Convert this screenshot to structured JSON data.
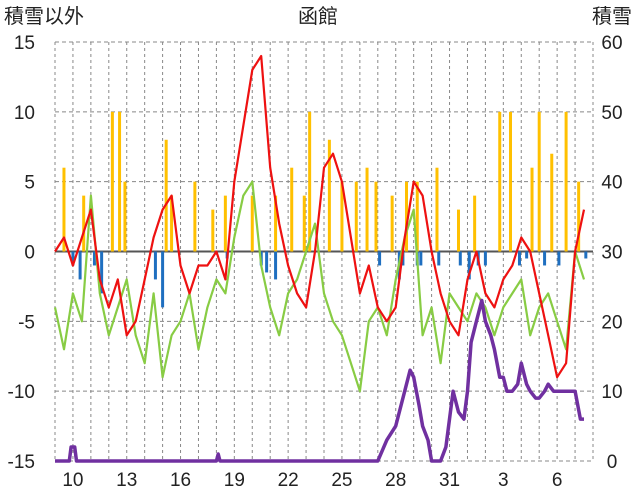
{
  "chart_data": {
    "type": "line",
    "title": "函館",
    "ylabel_left": "積雪以外",
    "ylabel_right": "積雪",
    "ylim_left": [
      -15,
      15
    ],
    "ylim_right": [
      0,
      60
    ],
    "y_left_ticks": [
      "15",
      "10",
      "5",
      "0",
      "-5",
      "-10",
      "-15"
    ],
    "y_right_ticks": [
      "60",
      "50",
      "40",
      "30",
      "20",
      "10",
      "0"
    ],
    "x_tick_labels": [
      "10",
      "13",
      "16",
      "19",
      "22",
      "25",
      "28",
      "31",
      "3",
      "6"
    ],
    "n_days": 30,
    "grid": true,
    "colors": {
      "max_temp": "#ee1111",
      "min_temp": "#88cc44",
      "precip_pos": "#ffc000",
      "precip_neg": "#1f6fc0",
      "snow_depth": "#7030a0",
      "grid": "#888888",
      "zero_line": "#555555"
    },
    "series": [
      {
        "key": "max_temp",
        "x": [
          0,
          0.5,
          1,
          1.5,
          2,
          2.5,
          3,
          3.5,
          4,
          4.5,
          5,
          5.5,
          6,
          6.5,
          7,
          7.5,
          8,
          8.5,
          9,
          9.5,
          10,
          10.5,
          11,
          11.5,
          12,
          12.5,
          13,
          13.5,
          14,
          14.5,
          15,
          15.5,
          16,
          16.5,
          17,
          17.5,
          18,
          18.5,
          19,
          19.5,
          20,
          20.5,
          21,
          21.5,
          22,
          22.5,
          23,
          23.5,
          24,
          24.5,
          25,
          25.5,
          26,
          26.5,
          27,
          27.5,
          28,
          28.5,
          29,
          29.5
        ],
        "values": [
          0,
          1,
          -1,
          1,
          3,
          -2,
          -4,
          -2,
          -6,
          -5,
          -2,
          1,
          3,
          4,
          -1,
          -3,
          -1,
          -1,
          0,
          -2,
          5,
          9,
          13,
          14,
          6,
          2,
          -1,
          -3,
          -4,
          0,
          6,
          7,
          5,
          1,
          -3,
          -1,
          -4,
          -5,
          -4,
          1,
          5,
          4,
          0,
          -3,
          -5,
          -6,
          -2,
          0,
          -3,
          -4,
          -2,
          -1,
          1,
          0,
          -3,
          -6,
          -9,
          -8,
          0,
          3
        ]
      },
      {
        "key": "min_temp",
        "x": [
          0,
          0.5,
          1,
          1.5,
          2,
          2.5,
          3,
          3.5,
          4,
          4.5,
          5,
          5.5,
          6,
          6.5,
          7,
          7.5,
          8,
          8.5,
          9,
          9.5,
          10,
          10.5,
          11,
          11.5,
          12,
          12.5,
          13,
          13.5,
          14,
          14.5,
          15,
          15.5,
          16,
          16.5,
          17,
          17.5,
          18,
          18.5,
          19,
          19.5,
          20,
          20.5,
          21,
          21.5,
          22,
          22.5,
          23,
          23.5,
          24,
          24.5,
          25,
          25.5,
          26,
          26.5,
          27,
          27.5,
          28,
          28.5,
          29,
          29.5
        ],
        "values": [
          -4,
          -7,
          -3,
          -5,
          4,
          -3,
          -6,
          -4,
          -2,
          -6,
          -8,
          -3,
          -9,
          -6,
          -5,
          -3,
          -7,
          -4,
          -2,
          -3,
          1,
          4,
          5,
          -1,
          -4,
          -6,
          -3,
          -2,
          0,
          2,
          -3,
          -5,
          -6,
          -8,
          -10,
          -5,
          -4,
          -6,
          -2,
          1,
          3,
          -6,
          -4,
          -8,
          -3,
          -4,
          -5,
          -3,
          -4,
          -6,
          -4,
          -3,
          -2,
          -6,
          -4,
          -3,
          -5,
          -7,
          0,
          -2
        ]
      },
      {
        "key": "precip",
        "x": [
          0.5,
          1.6,
          3.2,
          3.6,
          3.9,
          6.2,
          6.5,
          7.8,
          8.8,
          9.5,
          11.0,
          12.3,
          13.2,
          13.9,
          14.2,
          15.3,
          16.0,
          16.8,
          17.4,
          17.9,
          18.8,
          19.6,
          20.2,
          21.3,
          22.5,
          23.4,
          24.8,
          25.4,
          26.6,
          27.0,
          27.7,
          28.5,
          29.2
        ],
        "values": [
          6,
          4,
          10,
          10,
          5,
          8,
          4,
          5,
          3,
          4,
          4,
          4,
          6,
          4,
          10,
          8,
          5,
          5,
          6,
          5,
          4,
          5,
          5,
          6,
          3,
          4,
          10,
          10,
          6,
          10,
          7,
          10,
          5
        ]
      },
      {
        "key": "precip_neg",
        "x": [
          1.0,
          1.4,
          2.2,
          2.6,
          5.6,
          6.0,
          9.6,
          11.5,
          11.8,
          12.3,
          18.1,
          19.2,
          19.4,
          20.2,
          20.4,
          21.4,
          22.6,
          23.1,
          23.6,
          24.0,
          25.9,
          26.3,
          27.3,
          28.1,
          29.6
        ],
        "values": [
          -1,
          -2,
          -1,
          -3,
          -2,
          -4,
          -0.5,
          -1,
          -1.5,
          -2,
          -1,
          -2,
          -1,
          -1,
          -1,
          -1,
          -1,
          -2,
          -1,
          -1,
          -1,
          -0.5,
          -1,
          -1,
          -0.5
        ]
      },
      {
        "key": "snow_depth",
        "x": [
          0,
          0.8,
          0.9,
          1.1,
          1.2,
          9.0,
          9.1,
          9.2,
          18.0,
          18.5,
          19.0,
          19.5,
          19.8,
          20.0,
          20.3,
          20.5,
          20.8,
          21.0,
          21.2,
          21.5,
          21.8,
          22.0,
          22.2,
          22.5,
          22.8,
          23.0,
          23.2,
          23.5,
          23.8,
          24.0,
          24.3,
          24.5,
          24.8,
          25.0,
          25.2,
          25.5,
          25.8,
          26.0,
          26.3,
          26.5,
          26.8,
          27.0,
          27.3,
          27.5,
          27.8,
          28.0,
          28.3,
          28.5,
          28.8,
          29.0,
          29.3,
          29.5
        ],
        "values": [
          0,
          0,
          2,
          2,
          0,
          0,
          1,
          0,
          0,
          3,
          5,
          10,
          13,
          12,
          8,
          5,
          3,
          0,
          0,
          0,
          2,
          6,
          10,
          7,
          6,
          10,
          17,
          20,
          23,
          20,
          18,
          16,
          12,
          12,
          10,
          10,
          11,
          14,
          11,
          10,
          9,
          9,
          10,
          11,
          10,
          10,
          10,
          10,
          10,
          10,
          6,
          6
        ]
      }
    ]
  }
}
